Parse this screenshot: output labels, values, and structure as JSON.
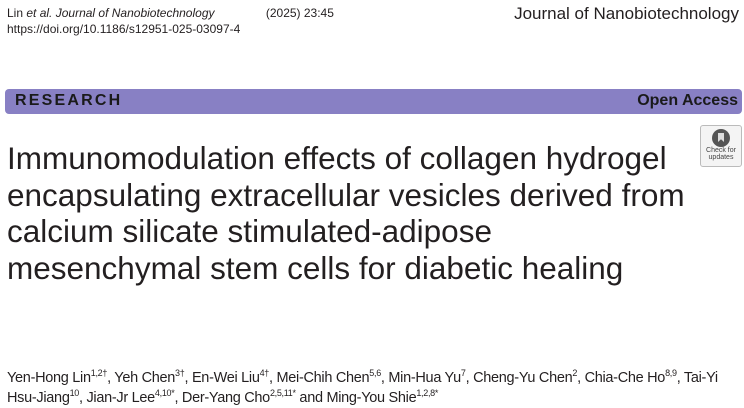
{
  "header": {
    "author_short": "Lin",
    "etal": "et al.",
    "journal_italic": "Journal of Nanobiotechnology",
    "volume": "(2025) 23:45",
    "doi": "https://doi.org/10.1186/s12951-025-03097-4",
    "journal_name": "Journal of Nanobiotechnology"
  },
  "banner": {
    "type": "RESEARCH",
    "access": "Open Access",
    "color": "#8880c4"
  },
  "check_updates": {
    "line1": "Check for",
    "line2": "updates"
  },
  "title": "Immunomodulation effects of collagen hydrogel encapsulating extracellular vesicles derived from calcium silicate stimulated-adipose mesenchymal stem cells for diabetic healing",
  "authors": [
    {
      "name": "Yen-Hong Lin",
      "sup": "1,2†",
      "sep": ", "
    },
    {
      "name": "Yeh Chen",
      "sup": "3†",
      "sep": ", "
    },
    {
      "name": "En-Wei Liu",
      "sup": "4†",
      "sep": ", "
    },
    {
      "name": "Mei-Chih Chen",
      "sup": "5,6",
      "sep": ", "
    },
    {
      "name": "Min-Hua Yu",
      "sup": "7",
      "sep": ", "
    },
    {
      "name": "Cheng-Yu Chen",
      "sup": "2",
      "sep": ", "
    },
    {
      "name": "Chia-Che Ho",
      "sup": "8,9",
      "sep": ", "
    },
    {
      "name": "Tai-Yi Hsu-Jiang",
      "sup": "10",
      "sep": ", "
    },
    {
      "name": "Jian-Jr Lee",
      "sup": "4,10*",
      "sep": ", "
    },
    {
      "name": "Der-Yang Cho",
      "sup": "2,5,11*",
      "sep": " and "
    },
    {
      "name": "Ming-You Shie",
      "sup": "1,2,8*",
      "sep": ""
    }
  ]
}
